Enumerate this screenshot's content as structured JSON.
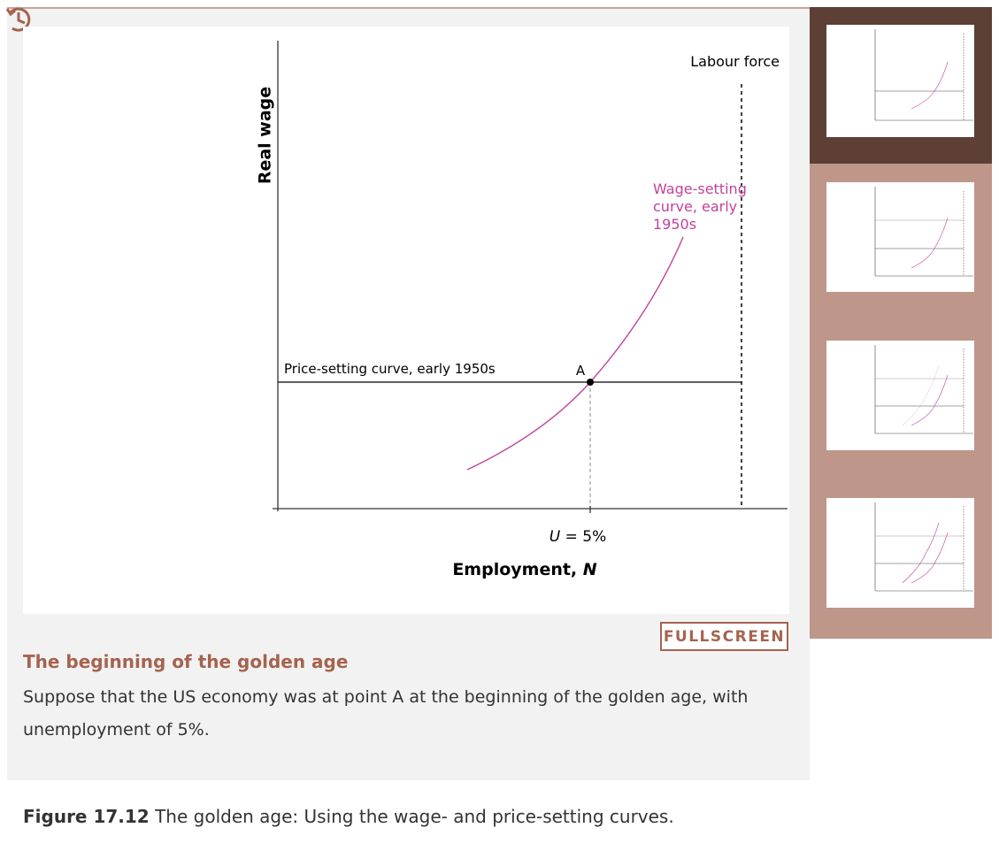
{
  "figure": {
    "y_axis_label": "Real wage",
    "labour_force_label": "Labour force",
    "wage_curve_label": [
      "Wage-setting",
      "curve, early",
      "1950s"
    ],
    "price_curve_label": "Price-setting curve, early 1950s",
    "point_label": "A",
    "unemployment_label": {
      "symbol": "U",
      "rest": " = 5%"
    },
    "x_axis_label": {
      "text": "Employment, ",
      "symbol": "N"
    }
  },
  "button": "FULLSCREEN",
  "step": {
    "title": "The beginning of the golden age",
    "text": "Suppose that the US economy was at point A at the beginning of the golden age, with unemployment of 5%."
  },
  "caption": {
    "number": "Figure 17.12",
    "text": " The golden age: Using the wage- and price-setting curves."
  }
}
